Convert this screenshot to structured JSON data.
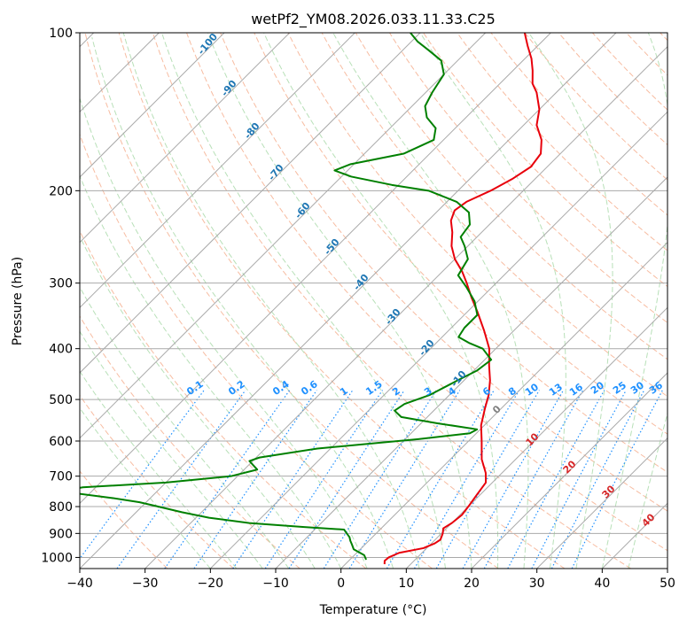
{
  "chart_data": {
    "type": "line",
    "title": "wetPf2_YM08.2026.033.11.33.C25",
    "xlabel": "Temperature (°C)",
    "ylabel": "Pressure (hPa)",
    "xlim": [
      -40,
      50
    ],
    "ylim": [
      1050,
      100
    ],
    "y_scale": "log",
    "skew": true,
    "x_ticks": [
      -40,
      -30,
      -20,
      -10,
      0,
      10,
      20,
      30,
      40,
      50
    ],
    "x_tick_labels": [
      "−40",
      "−30",
      "−20",
      "−10",
      "0",
      "10",
      "20",
      "30",
      "40",
      "50"
    ],
    "y_ticks": [
      100,
      200,
      300,
      400,
      500,
      600,
      700,
      800,
      900,
      1000
    ],
    "y_tick_labels": [
      "100",
      "200",
      "300",
      "400",
      "500",
      "600",
      "700",
      "800",
      "900",
      "1000"
    ],
    "grid": true,
    "series": [
      {
        "color": "#e8000b",
        "points": [
          [
            1030,
            6.0
          ],
          [
            1015,
            5.5
          ],
          [
            1000,
            5.6
          ],
          [
            980,
            6.5
          ],
          [
            960,
            9.5
          ],
          [
            940,
            10.5
          ],
          [
            925,
            10.8
          ],
          [
            900,
            10.2
          ],
          [
            880,
            9.5
          ],
          [
            860,
            10.0
          ],
          [
            830,
            10.3
          ],
          [
            800,
            10.0
          ],
          [
            760,
            9.5
          ],
          [
            720,
            9.0
          ],
          [
            690,
            7.5
          ],
          [
            650,
            4.8
          ],
          [
            600,
            2.0
          ],
          [
            560,
            -0.5
          ],
          [
            520,
            -2.5
          ],
          [
            490,
            -4.0
          ],
          [
            460,
            -6.0
          ],
          [
            430,
            -8.5
          ],
          [
            400,
            -11.0
          ],
          [
            370,
            -14.5
          ],
          [
            340,
            -18.5
          ],
          [
            320,
            -21.5
          ],
          [
            300,
            -24.5
          ],
          [
            285,
            -27.0
          ],
          [
            270,
            -30.0
          ],
          [
            255,
            -32.5
          ],
          [
            240,
            -34.5
          ],
          [
            228,
            -36.5
          ],
          [
            218,
            -37.5
          ],
          [
            210,
            -37.0
          ],
          [
            200,
            -35.0
          ],
          [
            190,
            -33.5
          ],
          [
            180,
            -32.5
          ],
          [
            170,
            -33.0
          ],
          [
            160,
            -35.0
          ],
          [
            150,
            -38.0
          ],
          [
            140,
            -40.0
          ],
          [
            130,
            -43.0
          ],
          [
            125,
            -45.0
          ],
          [
            118,
            -47.0
          ],
          [
            112,
            -49.0
          ],
          [
            106,
            -51.5
          ],
          [
            100,
            -54.0
          ]
        ]
      },
      {
        "color": "#008000",
        "points": [
          [
            1010,
            2.5
          ],
          [
            990,
            1.5
          ],
          [
            965,
            -1.0
          ],
          [
            945,
            -2.0
          ],
          [
            930,
            -2.8
          ],
          [
            915,
            -3.5
          ],
          [
            900,
            -4.5
          ],
          [
            885,
            -5.5
          ],
          [
            875,
            -12.0
          ],
          [
            860,
            -21.0
          ],
          [
            840,
            -28.0
          ],
          [
            820,
            -33.0
          ],
          [
            800,
            -37.5
          ],
          [
            785,
            -41.0
          ],
          [
            770,
            -46.0
          ],
          [
            755,
            -52.0
          ],
          [
            745,
            -54.0
          ],
          [
            735,
            -52.0
          ],
          [
            720,
            -40.0
          ],
          [
            700,
            -31.0
          ],
          [
            680,
            -28.0
          ],
          [
            665,
            -29.5
          ],
          [
            655,
            -30.5
          ],
          [
            645,
            -29.5
          ],
          [
            620,
            -22.0
          ],
          [
            595,
            -8.0
          ],
          [
            580,
            -1.0
          ],
          [
            570,
            -0.5
          ],
          [
            555,
            -7.5
          ],
          [
            540,
            -14.0
          ],
          [
            525,
            -16.0
          ],
          [
            510,
            -15.5
          ],
          [
            490,
            -13.0
          ],
          [
            460,
            -11.0
          ],
          [
            440,
            -9.5
          ],
          [
            420,
            -9.0
          ],
          [
            400,
            -12.0
          ],
          [
            390,
            -15.0
          ],
          [
            380,
            -17.5
          ],
          [
            365,
            -18.0
          ],
          [
            345,
            -18.0
          ],
          [
            325,
            -20.5
          ],
          [
            305,
            -24.0
          ],
          [
            290,
            -27.0
          ],
          [
            270,
            -28.0
          ],
          [
            255,
            -30.5
          ],
          [
            245,
            -32.5
          ],
          [
            232,
            -33.0
          ],
          [
            220,
            -35.0
          ],
          [
            210,
            -38.5
          ],
          [
            200,
            -44.5
          ],
          [
            195,
            -51.0
          ],
          [
            188,
            -58.5
          ],
          [
            183,
            -62.0
          ],
          [
            178,
            -60.5
          ],
          [
            170,
            -54.0
          ],
          [
            160,
            -51.5
          ],
          [
            152,
            -53.0
          ],
          [
            145,
            -56.0
          ],
          [
            138,
            -58.0
          ],
          [
            130,
            -59.0
          ],
          [
            120,
            -60.0
          ],
          [
            113,
            -62.5
          ],
          [
            108,
            -66.0
          ],
          [
            104,
            -69.0
          ],
          [
            100,
            -71.5
          ]
        ]
      }
    ],
    "dry_adiabat_labels": [
      "-100",
      "-90",
      "-80",
      "-70",
      "-60",
      "-50",
      "-40",
      "-30",
      "-20",
      "-10"
    ],
    "mixing_ratio_labels": [
      "0.1",
      "0.2",
      "0.4",
      "0.6",
      "1",
      "1.5",
      "2",
      "3",
      "4",
      "6",
      "8",
      "10",
      "13",
      "16",
      "20",
      "25",
      "30",
      "36"
    ],
    "moist_adiabat_labels": [
      "0",
      "10",
      "20",
      "30",
      "40"
    ],
    "colors": {
      "temperature": "#e8000b",
      "dewpoint": "#008000",
      "isotherm": "#a9a9a9",
      "isobar": "#a9a9a9",
      "dry_adiabat": "#f4a582",
      "moist_adiabat": "#a6d8a6",
      "mixing_ratio": "#1e90ff",
      "dry_label": "#1f77b4",
      "moist_label": "#d62728",
      "neutral_label": "#808080"
    }
  }
}
